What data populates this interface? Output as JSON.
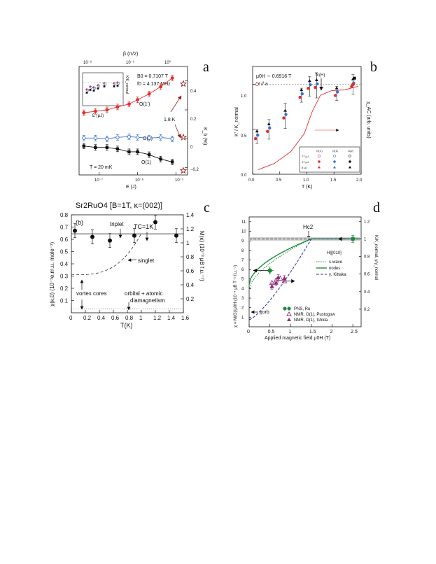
{
  "panel_letters": [
    "a",
    "b",
    "c",
    "d"
  ],
  "colors": {
    "red": "#e32b2b",
    "blue": "#3a6fd8",
    "black": "#111111",
    "darkred": "#9b1c1c",
    "green": "#1f8a3e",
    "purple": "#8e2a7a",
    "navy": "#2b2b8f",
    "panel_letter": "#2b2f6e"
  },
  "chart_data": [
    {
      "panel": "a",
      "type": "scatter",
      "x_scale": "log",
      "xlabel": "E (J)",
      "top_xlabel": "β (π/2)",
      "ylabel_right": "K_b (%)",
      "xlim": [
        3e-08,
        2e-05
      ],
      "ylim": [
        -0.25,
        0.5
      ],
      "x_ticks": [
        "10⁻⁷",
        "10⁻⁶",
        "10⁻⁵"
      ],
      "top_ticks": [
        "10⁻²",
        "10⁻¹",
        "10⁰"
      ],
      "y_ticks": [
        "0.4",
        "0.2",
        "0",
        "−0.2"
      ],
      "annotations": {
        "B0": "B0 = 0.7107 T",
        "f0": "f0 = 4.137 MHz",
        "temp": "T = 20 mK",
        "temp2": "1.8 K"
      },
      "series": [
        {
          "name": "O(1')",
          "color": "red",
          "points": [
            [
              4e-08,
              0.18
            ],
            [
              8e-08,
              0.19
            ],
            [
              1.6e-07,
              0.2
            ],
            [
              3e-07,
              0.22
            ],
            [
              6e-07,
              0.24
            ],
            [
              1e-06,
              0.27
            ],
            [
              2e-06,
              0.31
            ],
            [
              4e-06,
              0.36
            ],
            [
              8e-06,
              0.42
            ]
          ]
        },
        {
          "name": "O(2)",
          "color": "blue",
          "points": [
            [
              4e-08,
              0.005
            ],
            [
              8e-08,
              0.005
            ],
            [
              1.6e-07,
              0.0
            ],
            [
              3e-07,
              0.01
            ],
            [
              6e-07,
              0.015
            ],
            [
              1e-06,
              0.01
            ],
            [
              2e-06,
              0.005
            ],
            [
              4e-06,
              0.01
            ],
            [
              8e-06,
              0.0
            ]
          ]
        },
        {
          "name": "O(1)",
          "color": "black",
          "points": [
            [
              4e-08,
              -0.05
            ],
            [
              8e-08,
              -0.06
            ],
            [
              1.6e-07,
              -0.06
            ],
            [
              3e-07,
              -0.07
            ],
            [
              6e-07,
              -0.09
            ],
            [
              1e-06,
              -0.09
            ],
            [
              2e-06,
              -0.11
            ],
            [
              4e-06,
              -0.14
            ],
            [
              8e-06,
              -0.16
            ]
          ]
        }
      ],
      "stars_1p8K": [
        0.38,
        0.01,
        -0.22
      ],
      "inset": {
        "xlabel": "E (μJ)",
        "ylabel": "K/K_normal",
        "x_ticks": [
          "0",
          "2",
          "4",
          "6",
          "8"
        ],
        "y_ticks": [
          "0",
          "1"
        ]
      }
    },
    {
      "panel": "b",
      "type": "scatter",
      "xlabel": "T (K)",
      "ylabel_left": "K' / K_normal",
      "ylabel_right": "χ_AC (arb. units)",
      "xlim": [
        0,
        2
      ],
      "ylim": [
        0,
        1.2
      ],
      "x_ticks": [
        "0.0",
        "0.5",
        "1.0",
        "1.5",
        "2.0"
      ],
      "y_ticks": [
        "0.0",
        "0.5",
        "1.0"
      ],
      "annotations": {
        "field": "μ0H ∼ 0.6916 T",
        "dir": "H // a",
        "tc": "Tc(H)"
      },
      "legend_cols": [
        "O(1')",
        "O(1)",
        "O(2)"
      ],
      "legend_rows": [
        "77 μJ",
        "17 μJ",
        "8 μJ"
      ],
      "points": [
        [
          0.08,
          0.42
        ],
        [
          0.3,
          0.5
        ],
        [
          0.6,
          0.65
        ],
        [
          0.9,
          0.88
        ],
        [
          1.05,
          0.98
        ],
        [
          1.18,
          0.99
        ],
        [
          1.55,
          0.9
        ],
        [
          1.85,
          1.0
        ]
      ],
      "chi_ac": [
        [
          0.1,
          0.05
        ],
        [
          0.4,
          0.12
        ],
        [
          0.7,
          0.25
        ],
        [
          0.95,
          0.45
        ],
        [
          1.1,
          0.7
        ],
        [
          1.25,
          0.88
        ],
        [
          1.45,
          0.93
        ],
        [
          1.7,
          0.94
        ],
        [
          1.95,
          0.98
        ]
      ]
    },
    {
      "panel": "c",
      "type": "scatter",
      "title": "Sr2RuO4 [B=1T, κ=(002)]",
      "sublabel": "(b)",
      "xlabel": "T(K)",
      "ylabel_left": "χ(κ,0) (10⁻³e.m.u. mole⁻¹)",
      "ylabel_right": "M(κ) (10⁻³ μB f.u.⁻¹)",
      "xlim": [
        0,
        1.6
      ],
      "ylim_left": [
        0,
        0.8
      ],
      "ylim_right": [
        0,
        1.4
      ],
      "x_ticks": [
        "0",
        "0.2",
        "0.4",
        "0.6",
        "0.8",
        "1",
        "1.2",
        "1.4",
        "1.6"
      ],
      "y_ticks_left": [
        "0.1",
        "0.2",
        "0.3",
        "0.4",
        "0.5",
        "0.6",
        "0.7",
        "0.8"
      ],
      "y_ticks_right": [
        "0.2",
        "0.4",
        "0.6",
        "0.8",
        "1",
        "1.2",
        "1.4"
      ],
      "labels": {
        "triplet": "triplet",
        "tc": "TC=1K",
        "singlet": "singlet",
        "vortex": "vortex cores",
        "orbital": "orbital + atomic",
        "diamag": "diamagnetism"
      },
      "values": [
        [
          0.05,
          0.67
        ],
        [
          0.3,
          0.62
        ],
        [
          0.55,
          0.59
        ],
        [
          0.9,
          0.63
        ],
        [
          1.2,
          0.74
        ],
        [
          1.5,
          0.63
        ]
      ]
    },
    {
      "panel": "d",
      "type": "line",
      "xlabel": "Applied magnetic field μ0H (T)",
      "ylabel_left": "χ = M(G)/μ0H (10⁻⁴ μB T⁻¹ f.u.⁻¹)",
      "ylabel_right": "K/K_normal, γ/γ_normal",
      "xlim": [
        0,
        2.7
      ],
      "ylim": [
        0,
        1.25
      ],
      "x_ticks": [
        "0",
        "0.5",
        "1",
        "1.5",
        "2",
        "2.5"
      ],
      "y_ticks_left": [
        "1",
        "2",
        "3",
        "4",
        "5",
        "6",
        "7",
        "8",
        "9",
        "10",
        "11"
      ],
      "y_ticks_right": [
        "0.2",
        "0.4",
        "0.6",
        "0.8",
        "1",
        "1.2"
      ],
      "labels": {
        "hc2": "Hc2",
        "dir": "H||[010]",
        "chi_orb": "χorb"
      },
      "legend_lines": [
        "s-wave",
        "nodes",
        "γ, Kittaka"
      ],
      "legend_points": [
        "PNS, Ru",
        "NMR, O(1), Pustogow",
        "NMR, O(1), Ishida"
      ],
      "pns": [
        [
          0.5,
          0.64
        ],
        [
          2.5,
          1.0
        ]
      ],
      "nmr_pustogow": [
        [
          0.55,
          0.5
        ],
        [
          0.65,
          0.53
        ],
        [
          0.75,
          0.55
        ],
        [
          0.85,
          0.52
        ]
      ],
      "nmr_ishida": [
        [
          0.55,
          0.46
        ],
        [
          0.65,
          0.5
        ],
        [
          0.7,
          0.56
        ],
        [
          0.85,
          0.55
        ]
      ]
    }
  ]
}
